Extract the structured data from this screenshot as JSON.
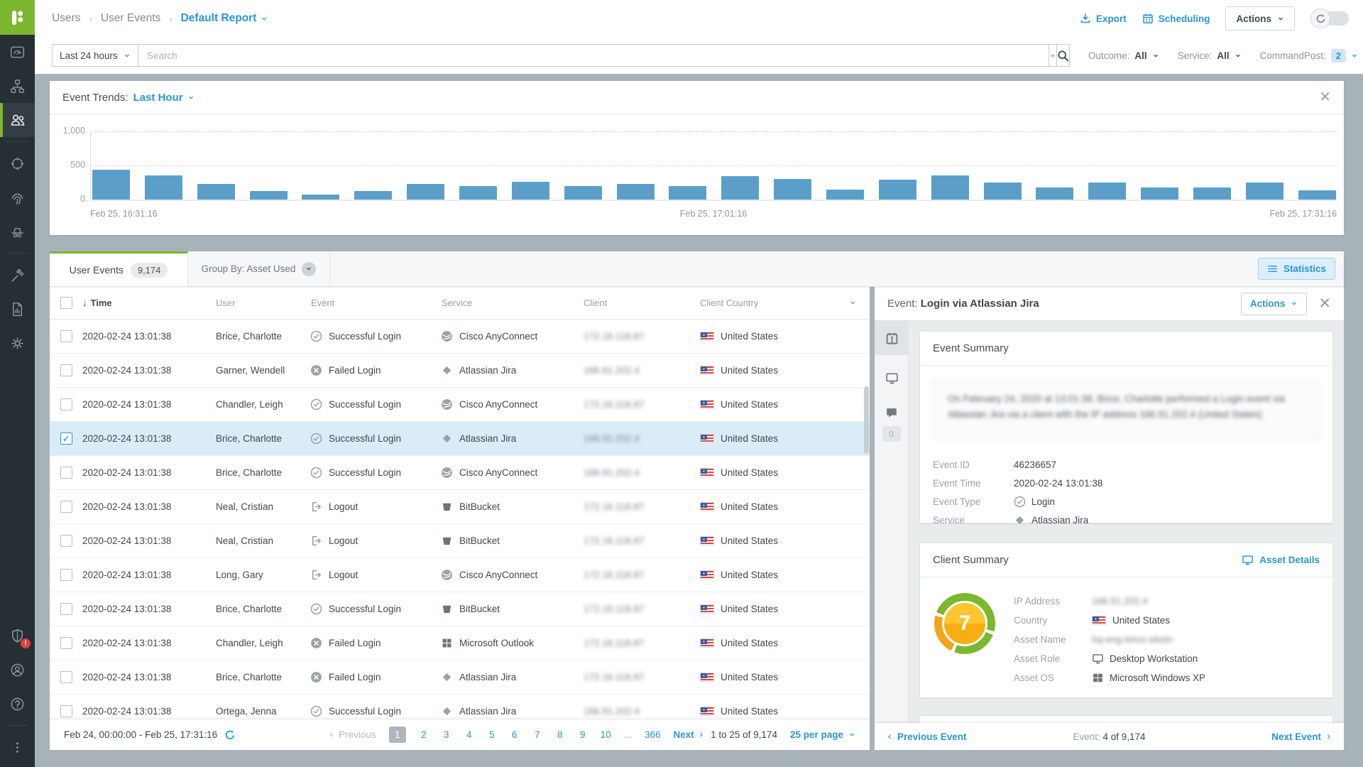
{
  "header": {
    "breadcrumbs": [
      "Users",
      "User Events"
    ],
    "current": "Default Report",
    "export_label": "Export",
    "scheduling_label": "Scheduling",
    "actions_label": "Actions"
  },
  "filters": {
    "time_range": "Last 24 hours",
    "search_placeholder": "Search",
    "outcome_label": "Outcome:",
    "outcome_value": "All",
    "service_label": "Service:",
    "service_value": "All",
    "commandpost_label": "CommandPost:",
    "commandpost_value": "2"
  },
  "trends": {
    "title": "Event Trends:",
    "range": "Last Hour"
  },
  "chart_data": {
    "type": "bar",
    "title": "Event Trends: Last Hour",
    "values": [
      440,
      350,
      230,
      130,
      70,
      130,
      230,
      200,
      260,
      200,
      230,
      200,
      340,
      300,
      150,
      290,
      350,
      250,
      180,
      250,
      180,
      180,
      250,
      140
    ],
    "x_tick_labels": [
      "Feb 25, 16:31:16",
      "Feb 25, 17:01:16",
      "Feb 25, 17:31:16"
    ],
    "ylabel": "",
    "yticks": [
      0,
      500,
      1000
    ],
    "ytick_labels": [
      "0",
      "500",
      "1,000"
    ],
    "ylim": [
      0,
      1100
    ],
    "bar_color": "#5b9fc9",
    "grid": "horizontal dashed at 500 and 1000"
  },
  "tabs": {
    "primary": "User Events",
    "count": "9,174",
    "group_by": "Group By: Asset Used",
    "statistics": "Statistics"
  },
  "table": {
    "columns": [
      "Time",
      "User",
      "Event",
      "Service",
      "Client",
      "Client Country"
    ],
    "rows": [
      {
        "time": "2020-02-24 13:01:38",
        "user": "Brice, Charlotte",
        "event": "Successful Login",
        "event_icon": "check",
        "service": "Cisco AnyConnect",
        "service_icon": "globe",
        "client": "172.16.118.87",
        "country": "United States",
        "selected": false
      },
      {
        "time": "2020-02-24 13:01:38",
        "user": "Garner, Wendell",
        "event": "Failed Login",
        "event_icon": "xcirc",
        "service": "Atlassian Jira",
        "service_icon": "diamond",
        "client": "166.91.202.4",
        "country": "United States",
        "selected": false
      },
      {
        "time": "2020-02-24 13:01:38",
        "user": "Chandler, Leigh",
        "event": "Successful Login",
        "event_icon": "check",
        "service": "Cisco AnyConnect",
        "service_icon": "globe",
        "client": "172.16.118.87",
        "country": "United States",
        "selected": false
      },
      {
        "time": "2020-02-24 13:01:38",
        "user": "Brice, Charlotte",
        "event": "Successful Login",
        "event_icon": "check",
        "service": "Atlassian Jira",
        "service_icon": "diamond",
        "client": "166.91.202.4",
        "country": "United States",
        "selected": true
      },
      {
        "time": "2020-02-24 13:01:38",
        "user": "Brice, Charlotte",
        "event": "Successful Login",
        "event_icon": "check",
        "service": "Cisco AnyConnect",
        "service_icon": "globe",
        "client": "166.91.202.4",
        "country": "United States",
        "selected": false
      },
      {
        "time": "2020-02-24 13:01:38",
        "user": "Neal, Cristian",
        "event": "Logout",
        "event_icon": "logout",
        "service": "BitBucket",
        "service_icon": "bucket",
        "client": "172.16.118.87",
        "country": "United States",
        "selected": false
      },
      {
        "time": "2020-02-24 13:01:38",
        "user": "Neal, Cristian",
        "event": "Logout",
        "event_icon": "logout",
        "service": "BitBucket",
        "service_icon": "bucket",
        "client": "172.16.118.87",
        "country": "United States",
        "selected": false
      },
      {
        "time": "2020-02-24 13:01:38",
        "user": "Long, Gary",
        "event": "Logout",
        "event_icon": "logout",
        "service": "Cisco AnyConnect",
        "service_icon": "globe",
        "client": "172.16.118.87",
        "country": "United States",
        "selected": false
      },
      {
        "time": "2020-02-24 13:01:38",
        "user": "Brice, Charlotte",
        "event": "Successful Login",
        "event_icon": "check",
        "service": "BitBucket",
        "service_icon": "bucket",
        "client": "172.16.118.87",
        "country": "United States",
        "selected": false
      },
      {
        "time": "2020-02-24 13:01:38",
        "user": "Chandler, Leigh",
        "event": "Failed Login",
        "event_icon": "xcirc",
        "service": "Microsoft Outlook",
        "service_icon": "grid",
        "client": "172.16.118.87",
        "country": "United States",
        "selected": false
      },
      {
        "time": "2020-02-24 13:01:38",
        "user": "Brice, Charlotte",
        "event": "Failed Login",
        "event_icon": "xcirc",
        "service": "Atlassian Jira",
        "service_icon": "diamond",
        "client": "172.16.118.87",
        "country": "United States",
        "selected": false
      },
      {
        "time": "2020-02-24 13:01:38",
        "user": "Ortega, Jenna",
        "event": "Successful Login",
        "event_icon": "check",
        "service": "Atlassian Jira",
        "service_icon": "diamond",
        "client": "166.91.202.4",
        "country": "United States",
        "selected": false
      }
    ]
  },
  "table_footer": {
    "range": "Feb 24, 00:00:00 - Feb 25, 17:31:16",
    "previous": "Previous",
    "pages": [
      "1",
      "2",
      "3",
      "4",
      "5",
      "6",
      "7",
      "8",
      "9",
      "10"
    ],
    "ellipsis": "...",
    "last_page": "366",
    "next": "Next",
    "count_info": "1 to 25 of 9,174",
    "per_page": "25 per page"
  },
  "detail": {
    "title_prefix": "Event:",
    "title": "Login via Atlassian Jira",
    "actions_label": "Actions",
    "comment_count": "0",
    "event_summary": {
      "heading": "Event Summary",
      "summary_text": "On February 24, 2020 at 13:01:38, Brice, Charlotte performed a Login event via Atlassian Jira via a client with the IP address 166.91.202.4 (United States).",
      "fields": [
        {
          "label": "Event ID",
          "value": "46236657"
        },
        {
          "label": "Event Time",
          "value": "2020-02-24 13:01:38"
        },
        {
          "label": "Event Type",
          "value": "Login",
          "icon": "check"
        },
        {
          "label": "Service",
          "value": "Atlassian Jira",
          "icon": "diamond"
        }
      ]
    },
    "client_summary": {
      "heading": "Client Summary",
      "asset_details_label": "Asset Details",
      "risk_score": "7",
      "fields": [
        {
          "label": "IP Address",
          "value": "166.91.202.4",
          "blurred": true
        },
        {
          "label": "Country",
          "value": "United States",
          "icon": "flag"
        },
        {
          "label": "Asset Name",
          "value": "hq-eng-brice-wkstn",
          "blurred": true
        },
        {
          "label": "Asset Role",
          "value": "Desktop Workstation",
          "icon": "monitor"
        },
        {
          "label": "Asset OS",
          "value": "Microsoft Windows XP",
          "icon": "windows"
        }
      ]
    },
    "footer": {
      "previous": "Previous Event",
      "position_label": "Event:",
      "position": "4 of 9,174",
      "next": "Next Event"
    }
  }
}
